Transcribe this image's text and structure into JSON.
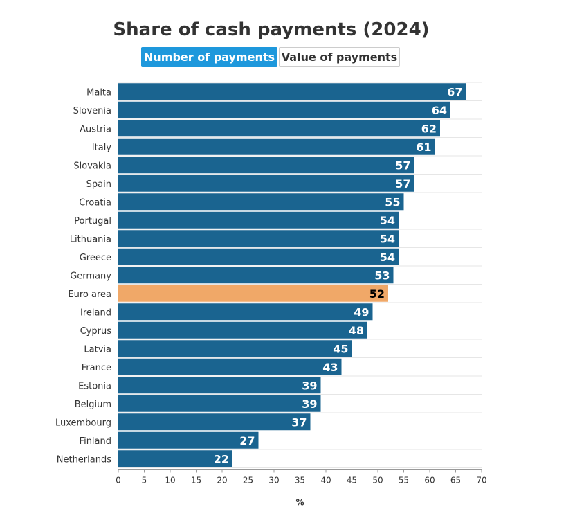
{
  "title": "Share of cash payments (2024)",
  "toggle": {
    "active_label": "Number of payments",
    "inactive_label": "Value of payments"
  },
  "colors": {
    "bar": "#1a6490",
    "highlight": "#f0a868",
    "grid": "#e6e6e6",
    "toggle_active": "#1e98dc"
  },
  "chart_data": {
    "type": "bar",
    "orientation": "horizontal",
    "categories": [
      "Malta",
      "Slovenia",
      "Austria",
      "Italy",
      "Slovakia",
      "Spain",
      "Croatia",
      "Portugal",
      "Lithuania",
      "Greece",
      "Germany",
      "Euro area",
      "Ireland",
      "Cyprus",
      "Latvia",
      "France",
      "Estonia",
      "Belgium",
      "Luxembourg",
      "Finland",
      "Netherlands"
    ],
    "values": [
      67,
      64,
      62,
      61,
      57,
      57,
      55,
      54,
      54,
      54,
      53,
      52,
      49,
      48,
      45,
      43,
      39,
      39,
      37,
      27,
      22
    ],
    "highlight": "Euro area",
    "xlabel": "%",
    "xlim": [
      0,
      70
    ],
    "xticks": [
      0,
      5,
      10,
      15,
      20,
      25,
      30,
      35,
      40,
      45,
      50,
      55,
      60,
      65,
      70
    ],
    "grid": true,
    "data_labels": true
  }
}
